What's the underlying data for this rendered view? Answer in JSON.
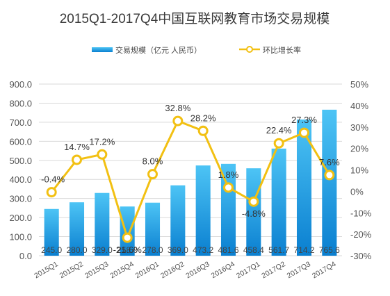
{
  "chart_data": {
    "type": "bar+line",
    "title": "2015Q1-2017Q4中国互联网教育市场交易规模",
    "categories": [
      "2015Q1",
      "2015Q2",
      "2015Q3",
      "2015Q4",
      "2016Q1",
      "2016Q2",
      "2016Q3",
      "2016Q4",
      "2017Q1",
      "2017Q2",
      "2017Q3",
      "2017Q4"
    ],
    "series": [
      {
        "name": "交易规模（亿元 人民币）",
        "type": "bar",
        "axis": "left",
        "values": [
          245.0,
          280.0,
          329.0,
          258.0,
          278.0,
          369.0,
          473.2,
          481.6,
          458.4,
          561.7,
          714.2,
          765.6
        ],
        "value_labels": [
          "245.0",
          "280.0",
          "329.0",
          "258.0",
          "278.0",
          "369.0",
          "473.2",
          "481.6",
          "458.4",
          "561.7",
          "714.2",
          "765.6"
        ]
      },
      {
        "name": "环比增长率",
        "type": "line",
        "axis": "right",
        "values": [
          -0.4,
          14.7,
          17.2,
          -21.6,
          8.0,
          32.8,
          28.2,
          1.8,
          -4.8,
          22.4,
          27.3,
          7.6
        ],
        "value_labels": [
          "-0.4%",
          "14.7%",
          "17.2%",
          "-21.6%",
          "8.0%",
          "32.8%",
          "28.2%",
          "1.8%",
          "-4.8%",
          "22.4%",
          "27.3%",
          "7.6%"
        ]
      }
    ],
    "y_left": {
      "ylim": [
        0,
        900
      ],
      "ticks": [
        "0.0",
        "100.0",
        "200.0",
        "300.0",
        "400.0",
        "500.0",
        "600.0",
        "700.0",
        "800.0",
        "900.0"
      ]
    },
    "y_right": {
      "ylim": [
        -30,
        50
      ],
      "ticks": [
        "-30%",
        "-20%",
        "-10%",
        "0%",
        "10%",
        "20%",
        "30%",
        "40%",
        "50%"
      ]
    },
    "grid": true,
    "legend_position": "top",
    "colors": {
      "bar_top": "#4dc4f5",
      "bar_bottom": "#0a7fd0",
      "line": "#f2c012",
      "marker_fill": "#ffffff"
    }
  }
}
